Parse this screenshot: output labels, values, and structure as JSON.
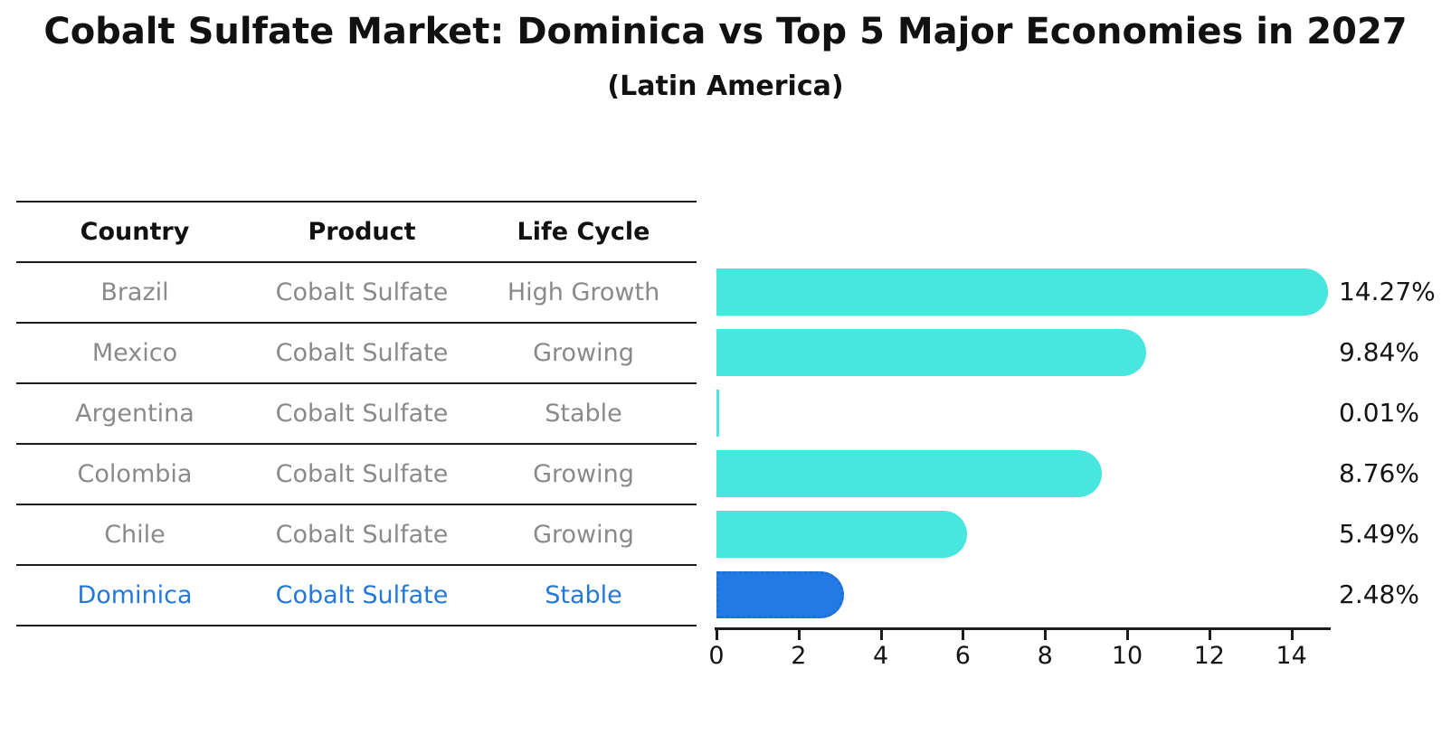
{
  "header": {
    "title": "Cobalt Sulfate Market: Dominica vs Top 5 Major Economies in 2027",
    "subtitle": "(Latin America)"
  },
  "table": {
    "headers": [
      "Country",
      "Product",
      "Life Cycle"
    ],
    "rows": [
      {
        "country": "Brazil",
        "product": "Cobalt Sulfate",
        "life_cycle": "High Growth",
        "highlight": false
      },
      {
        "country": "Mexico",
        "product": "Cobalt Sulfate",
        "life_cycle": "Growing",
        "highlight": false
      },
      {
        "country": "Argentina",
        "product": "Cobalt Sulfate",
        "life_cycle": "Stable",
        "highlight": false
      },
      {
        "country": "Colombia",
        "product": "Cobalt Sulfate",
        "life_cycle": "Growing",
        "highlight": false
      },
      {
        "country": "Chile",
        "product": "Cobalt Sulfate",
        "life_cycle": "Growing",
        "highlight": false
      },
      {
        "country": "Dominica",
        "product": "Cobalt Sulfate",
        "life_cycle": "Stable",
        "highlight": true
      }
    ]
  },
  "chart_data": {
    "type": "bar",
    "orientation": "horizontal",
    "title": "Cobalt Sulfate Market: Dominica vs Top 5 Major Economies in 2027",
    "subtitle": "(Latin America)",
    "categories": [
      "Brazil",
      "Mexico",
      "Argentina",
      "Colombia",
      "Chile",
      "Dominica"
    ],
    "values": [
      14.27,
      9.84,
      0.01,
      8.76,
      5.49,
      2.48
    ],
    "value_labels": [
      "14.27%",
      "9.84%",
      "0.01%",
      "8.76%",
      "5.49%",
      "2.48%"
    ],
    "units": "percent",
    "highlight_index": 5,
    "xlim": [
      0,
      15
    ],
    "x_ticks": [
      0,
      2,
      4,
      6,
      8,
      10,
      12,
      14
    ],
    "grid": "off",
    "legend": "none"
  },
  "colors": {
    "bar_default": "#47e6df",
    "bar_highlight": "#227ae4",
    "bar_highlight_border": "#1e6fd2",
    "highlight_text": "#2478d8",
    "table_text": "#8a8a8a",
    "header_text": "#111111",
    "line": "#1c1c1c"
  }
}
